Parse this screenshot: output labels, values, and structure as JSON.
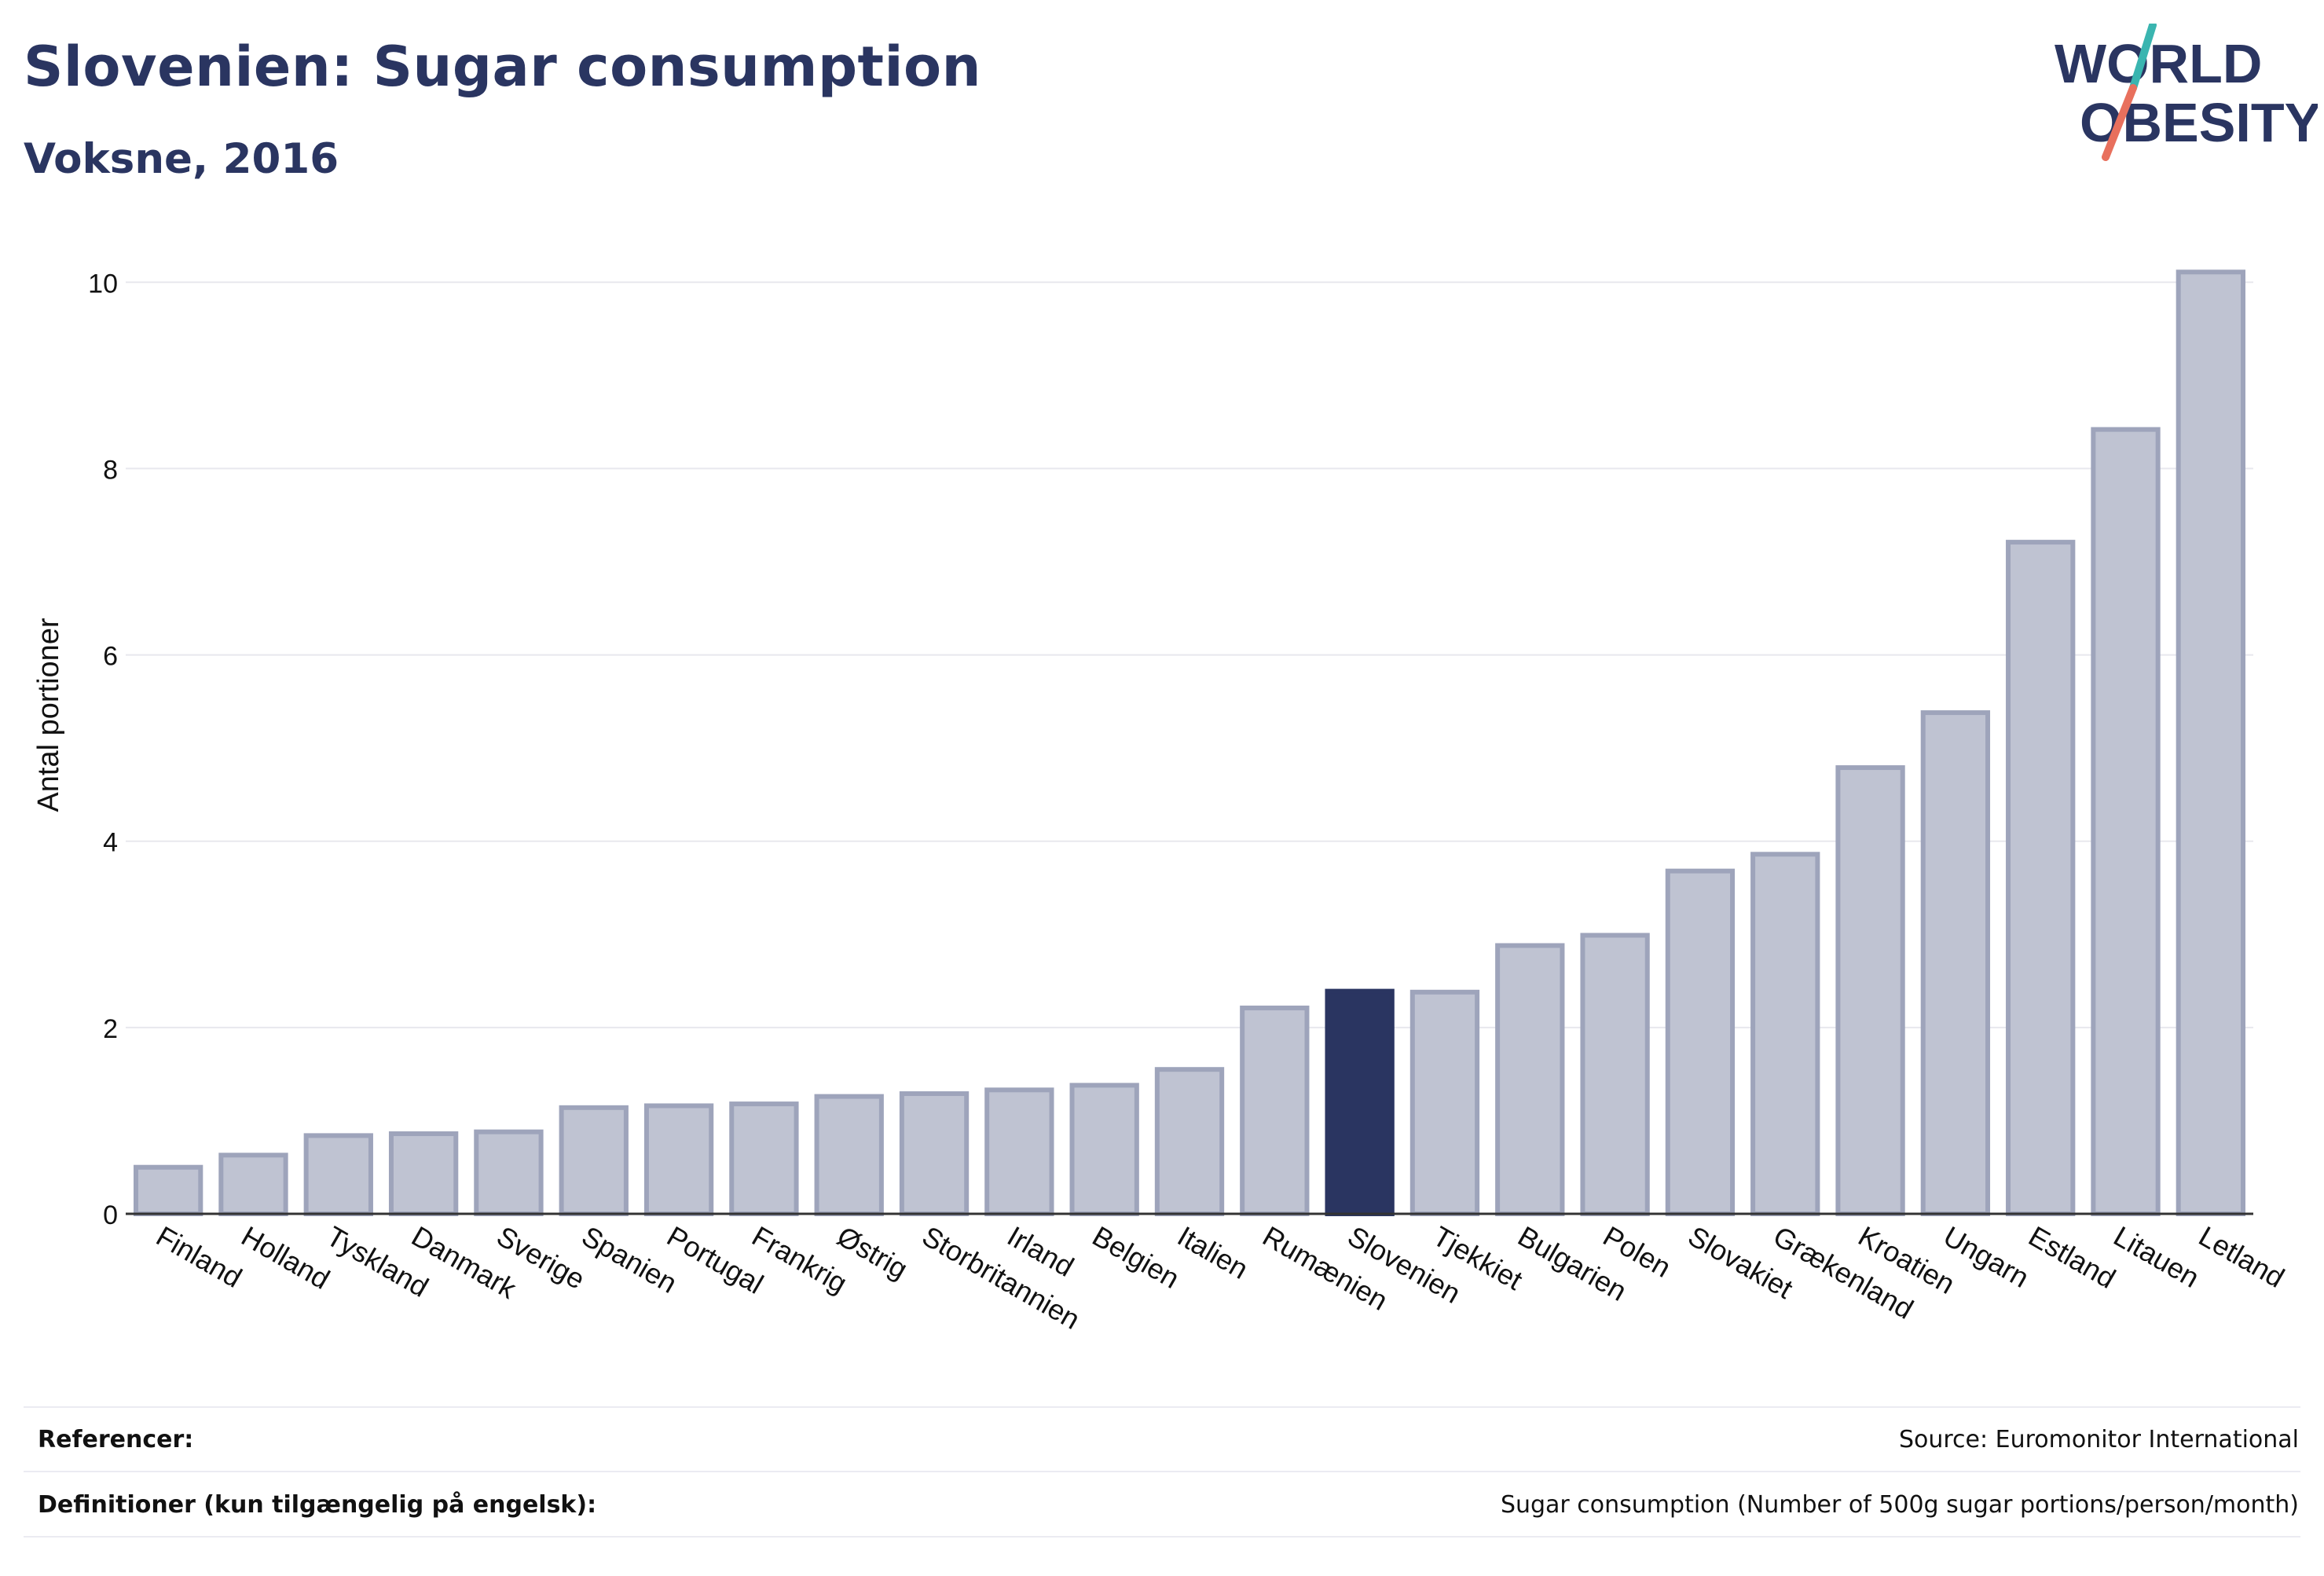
{
  "header": {
    "title": "Slovenien: Sugar consumption",
    "subtitle": "Voksne, 2016"
  },
  "logo": {
    "line1": "WORLD",
    "line2": "OBESITY",
    "colors": {
      "text": "#2a3561",
      "accent_teal": "#3ab5b0",
      "accent_coral": "#e8705d"
    }
  },
  "chart_data": {
    "type": "bar",
    "ylabel": "Antal portioner",
    "xlabel": "",
    "ylim": [
      0,
      10.5
    ],
    "yticks": [
      0,
      2,
      4,
      6,
      8,
      10
    ],
    "grid": true,
    "highlight": "Slovenien",
    "colors": {
      "bar": "#bfc3d2",
      "bar_border": "#9ea4bb",
      "highlight": "#2a3561",
      "grid": "#e8e8ee",
      "axis": "#333333"
    },
    "categories": [
      "Finland",
      "Holland",
      "Tyskland",
      "Danmark",
      "Sverige",
      "Spanien",
      "Portugal",
      "Frankrig",
      "Østrig",
      "Storbritannien",
      "Irland",
      "Belgien",
      "Italien",
      "Rumænien",
      "Slovenien",
      "Tjekkiet",
      "Bulgarien",
      "Polen",
      "Slovakiet",
      "Grækenland",
      "Kroatien",
      "Ungarn",
      "Estland",
      "Litauen",
      "Letland"
    ],
    "values": [
      0.5,
      0.63,
      0.84,
      0.86,
      0.88,
      1.14,
      1.16,
      1.18,
      1.26,
      1.29,
      1.33,
      1.38,
      1.55,
      2.21,
      2.39,
      2.38,
      2.88,
      2.99,
      3.68,
      3.86,
      4.79,
      5.38,
      7.21,
      8.42,
      10.11
    ]
  },
  "footer": {
    "references_label": "Referencer:",
    "references_value": "Source: Euromonitor International",
    "definitions_label": "Definitioner (kun tilgængelig på engelsk):",
    "definitions_value": "Sugar consumption (Number of 500g sugar portions/person/month)"
  }
}
